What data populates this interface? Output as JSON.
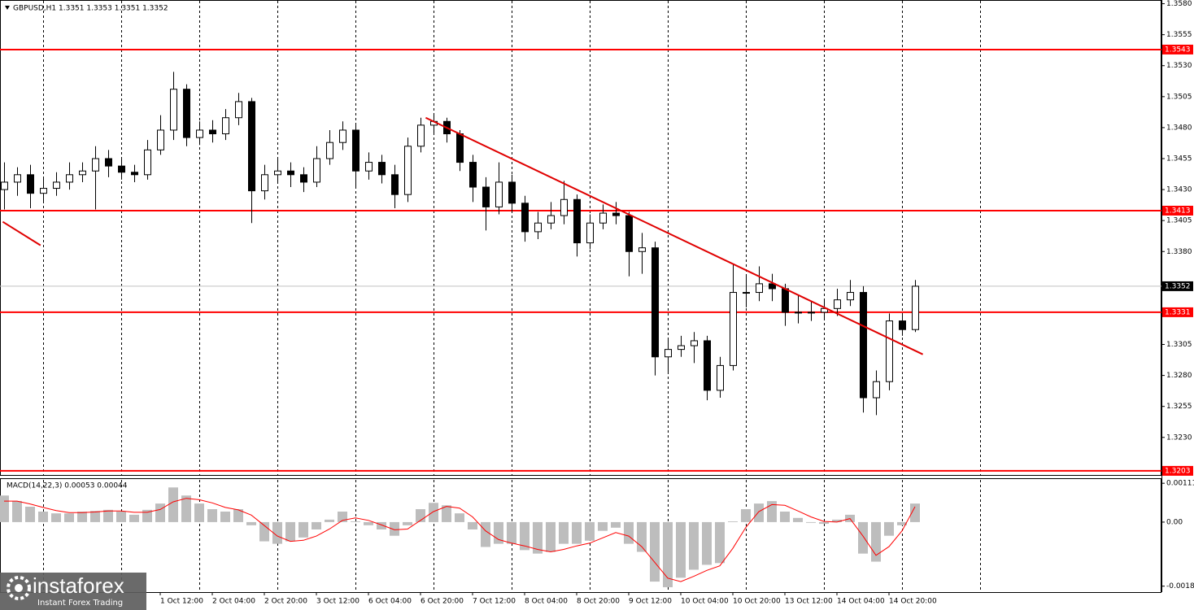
{
  "header": "GBPUSD,H1  1.3351 1.3353 1.3351 1.3352",
  "chart_data": [
    {
      "type": "candlestick",
      "candles": [
        [
          1.343,
          1.3452,
          1.3414,
          1.3436
        ],
        [
          1.3436,
          1.3448,
          1.3425,
          1.3442
        ],
        [
          1.3442,
          1.345,
          1.3415,
          1.3427
        ],
        [
          1.3427,
          1.344,
          1.342,
          1.3431
        ],
        [
          1.3431,
          1.3444,
          1.3425,
          1.3436
        ],
        [
          1.3436,
          1.3452,
          1.343,
          1.3442
        ],
        [
          1.3442,
          1.3452,
          1.3436,
          1.3445
        ],
        [
          1.3445,
          1.3465,
          1.3414,
          1.3455
        ],
        [
          1.3455,
          1.3462,
          1.344,
          1.3449
        ],
        [
          1.3449,
          1.3455,
          1.3438,
          1.3444
        ],
        [
          1.3444,
          1.345,
          1.3436,
          1.3442
        ],
        [
          1.3442,
          1.347,
          1.3438,
          1.3462
        ],
        [
          1.3462,
          1.349,
          1.3458,
          1.3478
        ],
        [
          1.3478,
          1.3525,
          1.347,
          1.3511
        ],
        [
          1.3511,
          1.3515,
          1.3465,
          1.3472
        ],
        [
          1.3472,
          1.3485,
          1.3466,
          1.3478
        ],
        [
          1.3478,
          1.3486,
          1.3468,
          1.3475
        ],
        [
          1.3475,
          1.3495,
          1.347,
          1.3488
        ],
        [
          1.3488,
          1.3508,
          1.3482,
          1.3501
        ],
        [
          1.3501,
          1.3504,
          1.3403,
          1.3429
        ],
        [
          1.3429,
          1.345,
          1.3422,
          1.3442
        ],
        [
          1.3442,
          1.3455,
          1.3435,
          1.3445
        ],
        [
          1.3445,
          1.3452,
          1.3432,
          1.3442
        ],
        [
          1.3442,
          1.3448,
          1.3428,
          1.3436
        ],
        [
          1.3436,
          1.3465,
          1.3432,
          1.3455
        ],
        [
          1.3455,
          1.3478,
          1.345,
          1.3468
        ],
        [
          1.3468,
          1.3485,
          1.3462,
          1.3478
        ],
        [
          1.3478,
          1.3482,
          1.3432,
          1.3445
        ],
        [
          1.3445,
          1.346,
          1.3438,
          1.3452
        ],
        [
          1.3452,
          1.3458,
          1.3435,
          1.3442
        ],
        [
          1.3442,
          1.345,
          1.3415,
          1.3426
        ],
        [
          1.3426,
          1.3472,
          1.342,
          1.3465
        ],
        [
          1.3465,
          1.3488,
          1.346,
          1.3482
        ],
        [
          1.3482,
          1.349,
          1.3476,
          1.3485
        ],
        [
          1.3485,
          1.3488,
          1.3468,
          1.3475
        ],
        [
          1.3475,
          1.3478,
          1.3445,
          1.3452
        ],
        [
          1.3452,
          1.3458,
          1.342,
          1.3432
        ],
        [
          1.3432,
          1.344,
          1.3397,
          1.3416
        ],
        [
          1.3416,
          1.3452,
          1.341,
          1.3436
        ],
        [
          1.3436,
          1.3442,
          1.3412,
          1.3419
        ],
        [
          1.3419,
          1.3425,
          1.3388,
          1.3396
        ],
        [
          1.3396,
          1.3412,
          1.339,
          1.3403
        ],
        [
          1.3403,
          1.342,
          1.3398,
          1.3409
        ],
        [
          1.3409,
          1.3437,
          1.3402,
          1.3422
        ],
        [
          1.3422,
          1.3426,
          1.3376,
          1.3387
        ],
        [
          1.3387,
          1.341,
          1.3382,
          1.3403
        ],
        [
          1.3403,
          1.3418,
          1.3398,
          1.3411
        ],
        [
          1.3411,
          1.342,
          1.3402,
          1.3409
        ],
        [
          1.3409,
          1.3412,
          1.336,
          1.338
        ],
        [
          1.338,
          1.3395,
          1.3362,
          1.3383
        ],
        [
          1.3383,
          1.3388,
          1.328,
          1.3295
        ],
        [
          1.3295,
          1.331,
          1.3282,
          1.3301
        ],
        [
          1.3301,
          1.3312,
          1.3295,
          1.3304
        ],
        [
          1.3304,
          1.3315,
          1.329,
          1.3308
        ],
        [
          1.3308,
          1.3312,
          1.326,
          1.3268
        ],
        [
          1.3268,
          1.3295,
          1.3262,
          1.3288
        ],
        [
          1.3288,
          1.337,
          1.3284,
          1.3347
        ],
        [
          1.3347,
          1.336,
          1.3335,
          1.3347
        ],
        [
          1.3347,
          1.3368,
          1.334,
          1.3354
        ],
        [
          1.3354,
          1.3362,
          1.334,
          1.335
        ],
        [
          1.335,
          1.3354,
          1.332,
          1.3331
        ],
        [
          1.3331,
          1.3345,
          1.3322,
          1.3331
        ],
        [
          1.3331,
          1.334,
          1.3324,
          1.3331
        ],
        [
          1.3331,
          1.3342,
          1.3326,
          1.3334
        ],
        [
          1.3334,
          1.335,
          1.3328,
          1.3341
        ],
        [
          1.3341,
          1.3357,
          1.3336,
          1.3347
        ],
        [
          1.3347,
          1.3352,
          1.325,
          1.3262
        ],
        [
          1.3262,
          1.3284,
          1.3248,
          1.3275
        ],
        [
          1.3275,
          1.333,
          1.3268,
          1.3324
        ],
        [
          1.3324,
          1.333,
          1.3312,
          1.3317
        ],
        [
          1.3317,
          1.3357,
          1.3315,
          1.3352
        ]
      ],
      "xlim": [
        0,
        89
      ],
      "xticks": [
        {
          "value": 12,
          "label": "1 Oct 12:00"
        },
        {
          "value": 16,
          "label": "2 Oct 04:00"
        },
        {
          "value": 20,
          "label": "2 Oct 20:00"
        },
        {
          "value": 24,
          "label": "3 Oct 12:00"
        },
        {
          "value": 28,
          "label": "6 Oct 04:00"
        },
        {
          "value": 32,
          "label": "6 Oct 20:00"
        },
        {
          "value": 36,
          "label": "7 Oct 12:00"
        },
        {
          "value": 40,
          "label": "8 Oct 04:00"
        },
        {
          "value": 44,
          "label": "8 Oct 20:00"
        },
        {
          "value": 48,
          "label": "9 Oct 12:00"
        },
        {
          "value": 52,
          "label": "10 Oct 04:00"
        },
        {
          "value": 56,
          "label": "10 Oct 20:00"
        },
        {
          "value": 60,
          "label": "13 Oct 12:00"
        },
        {
          "value": 64,
          "label": "14 Oct 04:00"
        },
        {
          "value": 68,
          "label": "14 Oct 20:00"
        }
      ],
      "xgrid": [
        3,
        9,
        15,
        21,
        27,
        33,
        39,
        45,
        51,
        57,
        63,
        69,
        75
      ],
      "ylim": [
        1.3199,
        1.3583
      ],
      "yticks": [
        {
          "value": 1.358,
          "label": "1.3580"
        },
        1.3555,
        {
          "value": 1.353,
          "label": "1.3530"
        },
        1.3505,
        {
          "value": 1.348,
          "label": "1.3480"
        },
        1.3455,
        {
          "value": 1.343,
          "label": "1.3430"
        },
        1.3405,
        {
          "value": 1.338,
          "label": "1.3380"
        },
        1.3305,
        {
          "value": 1.328,
          "label": "1.3280"
        },
        1.3255,
        {
          "value": 1.323,
          "label": "1.3230"
        }
      ],
      "levels": [
        1.3543,
        1.3413,
        1.3331,
        1.3203
      ],
      "level_color": "#ff0000",
      "current_price": 1.3352,
      "trendlines": [
        {
          "x": [
            32.4,
            70.6
          ],
          "y": [
            1.3488,
            1.3297
          ]
        },
        {
          "x": [
            -0.1,
            2.8
          ],
          "y": [
            1.3404,
            1.3385
          ]
        }
      ],
      "trend_color": "#e00000"
    },
    {
      "type": "macd",
      "title": "MACD(14,22,3) 0.00053 0.00044",
      "values": [
        0.00076,
        0.0006,
        0.00044,
        0.0003,
        0.00025,
        0.00025,
        0.0003,
        0.00032,
        0.00035,
        0.0003,
        0.00021,
        0.00035,
        0.00053,
        0.00099,
        0.00076,
        0.00053,
        0.00037,
        0.0003,
        0.00037,
        -9e-05,
        -0.00055,
        -0.00062,
        -0.00055,
        -0.00044,
        -0.00021,
        7e-05,
        0.0003,
        2e-05,
        -9e-05,
        -0.00021,
        -0.00039,
        -9e-05,
        0.00037,
        0.00055,
        0.00048,
        0.00025,
        -0.00021,
        -0.00071,
        -0.00062,
        -0.00062,
        -0.0008,
        -0.0009,
        -0.00085,
        -0.00062,
        -0.00062,
        -0.00053,
        -0.00025,
        -0.00016,
        -0.00062,
        -0.00085,
        -0.0017,
        -0.00186,
        -0.00159,
        -0.00136,
        -0.00122,
        -0.00117,
        2e-05,
        0.00037,
        0.00053,
        0.0006,
        0.0003,
        0.00012,
        -2e-05,
        -5e-05,
        7e-05,
        0.00021,
        -0.0009,
        -0.00113,
        -0.00039,
        -9e-05,
        0.00053
      ],
      "color": "#bdbdbd",
      "signal": {
        "color": "#ff0000",
        "values": [
          0.0006,
          0.0006,
          0.00052,
          0.00042,
          0.00033,
          0.00027,
          0.00027,
          0.00029,
          0.00032,
          0.00032,
          0.00028,
          0.00028,
          0.00036,
          0.00058,
          0.00068,
          0.00064,
          0.00055,
          0.00042,
          0.00035,
          0.0002,
          -0.0001,
          -0.0004,
          -0.00055,
          -0.00052,
          -0.0004,
          -0.0002,
          5e-05,
          0.00012,
          5e-05,
          -8e-05,
          -0.00022,
          -0.0002,
          5e-05,
          0.0003,
          0.00045,
          0.0004,
          0.00015,
          -0.00025,
          -0.0005,
          -0.0006,
          -0.00068,
          -0.00078,
          -0.00085,
          -0.00078,
          -0.00068,
          -0.0006,
          -0.00045,
          -0.0003,
          -0.0004,
          -0.0007,
          -0.00115,
          -0.0016,
          -0.0017,
          -0.00155,
          -0.00138,
          -0.00125,
          -0.00075,
          -0.00015,
          0.0003,
          0.0005,
          0.00048,
          0.00032,
          0.00015,
          2e-05,
          0.0,
          0.0001,
          -0.0004,
          -0.00095,
          -0.0007,
          -0.00025,
          0.00044
        ]
      },
      "ylim": [
        -0.002,
        0.00123
      ],
      "yticks": [
        0.00111,
        {
          "value": 0,
          "label": "0.00"
        },
        -0.00183
      ]
    }
  ],
  "logo": {
    "name": "instaforex",
    "tagline": "Instant Forex Trading"
  }
}
